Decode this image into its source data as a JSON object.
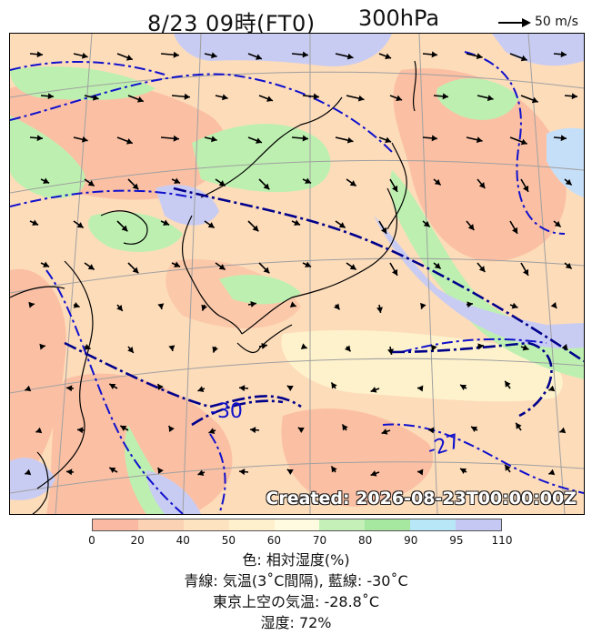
{
  "title": {
    "datetime": "8/23 09時(FT0)",
    "level": "300hPa"
  },
  "wind_reference": {
    "label": "50 m/s"
  },
  "map": {
    "created_stamp": "Created: 2026-08-23T00:00:00Z",
    "contour_labels": [
      "-30",
      "-27"
    ],
    "colors": {
      "ocean_dry": "#fbc6a6",
      "dry2": "#fddcba",
      "mid": "#fef4d0",
      "moist": "#bdf0b0",
      "wet": "#c6dff8",
      "sat": "#c9ccf2",
      "coast": "#000000",
      "isotherm": "#1010cc",
      "isotherm_bold": "#00008b",
      "grid": "#a0a0a0"
    }
  },
  "colorbar": {
    "ticks": [
      "0",
      "20",
      "40",
      "50",
      "60",
      "70",
      "80",
      "90",
      "95",
      "110"
    ],
    "colors": [
      "#f9b9a2",
      "#fcd2b4",
      "#fde3c0",
      "#fef0cc",
      "#fffbe0",
      "#c5f0b8",
      "#a6e8a0",
      "#b8e8f8",
      "#c4c8f2"
    ]
  },
  "legend": {
    "line1": "色: 相対湿度(%)",
    "line2": "青線: 気温(3˚C間隔), 藍線: -30˚C",
    "line3": "東京上空の気温: -28.8˚C",
    "line4": "湿度: 72%"
  }
}
